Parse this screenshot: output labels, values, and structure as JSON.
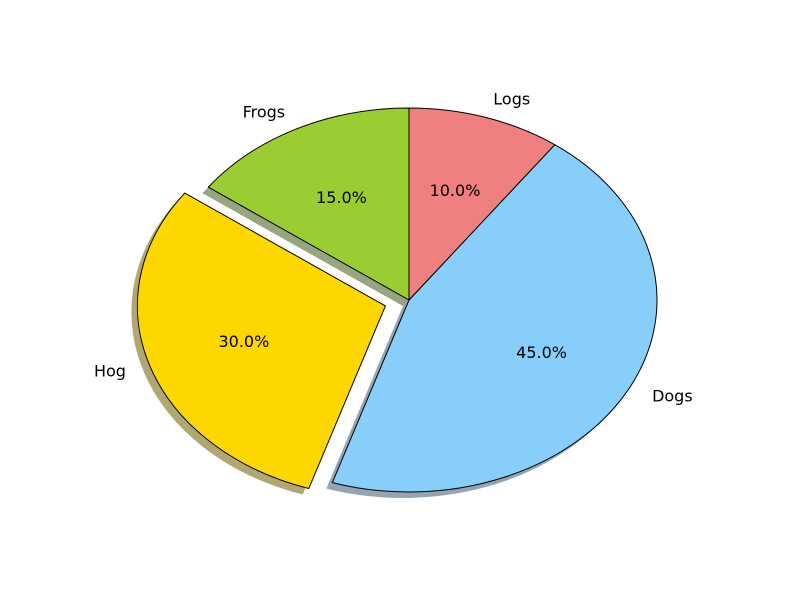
{
  "chart_data": {
    "type": "pie",
    "title": "",
    "start_angle_deg": 90,
    "direction": "counterclockwise",
    "shadow": true,
    "slices": [
      {
        "label": "Frogs",
        "value": 15,
        "pct_label": "15.0%",
        "color": "#9ACD32",
        "explode": 0
      },
      {
        "label": "Hog",
        "value": 30,
        "pct_label": "30.0%",
        "color": "#FFD700",
        "explode": 0.1
      },
      {
        "label": "Dogs",
        "value": 45,
        "pct_label": "45.0%",
        "color": "#87CEFA",
        "explode": 0
      },
      {
        "label": "Logs",
        "value": 10,
        "pct_label": "10.0%",
        "color": "#F08080",
        "explode": 0
      }
    ]
  }
}
